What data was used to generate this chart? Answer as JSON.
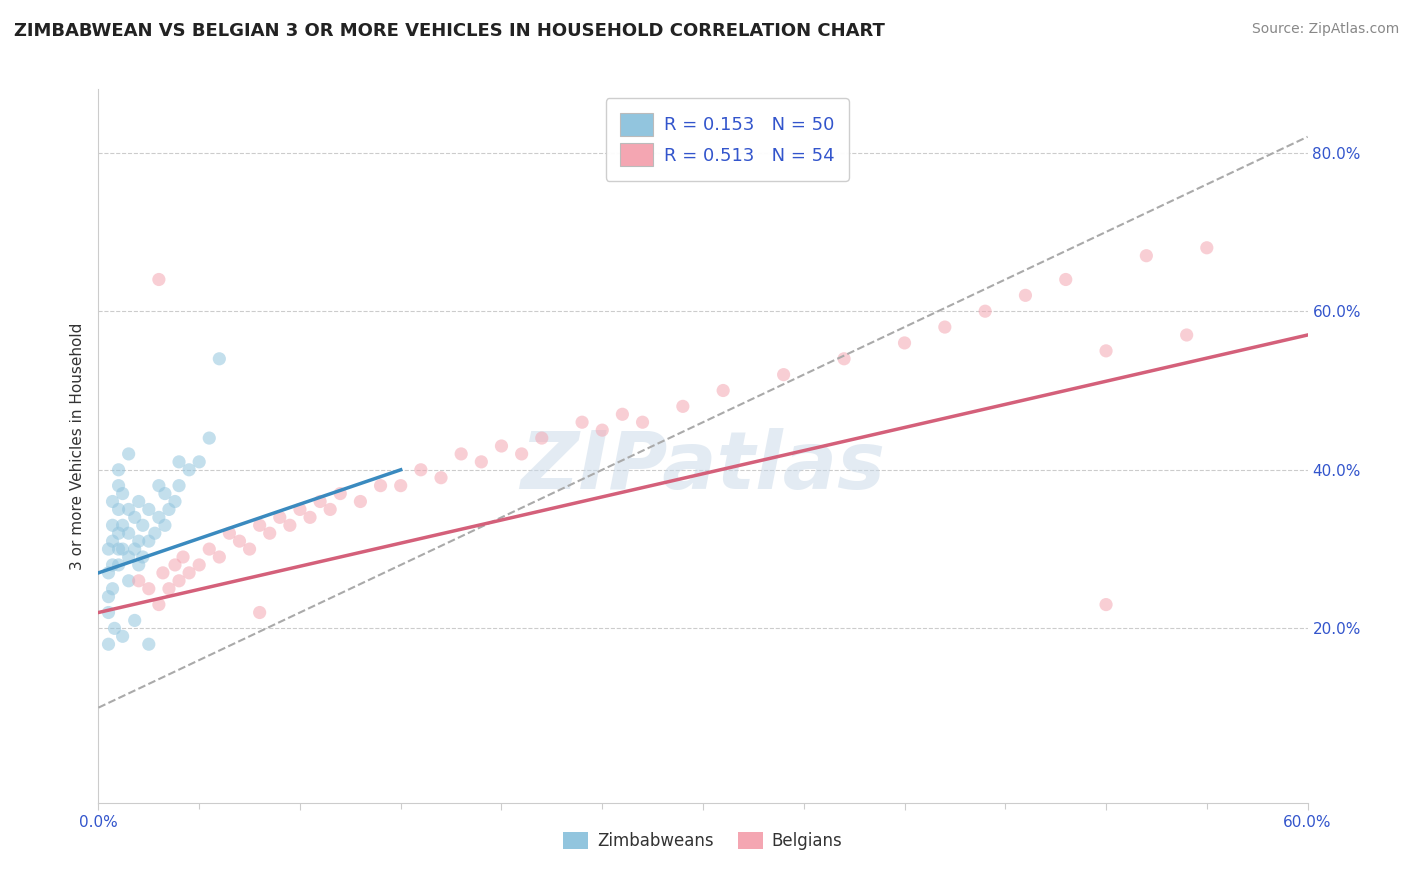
{
  "title": "ZIMBABWEAN VS BELGIAN 3 OR MORE VEHICLES IN HOUSEHOLD CORRELATION CHART",
  "source_text": "Source: ZipAtlas.com",
  "ylabel": "3 or more Vehicles in Household",
  "xlim": [
    0.0,
    0.6
  ],
  "ylim": [
    -0.02,
    0.88
  ],
  "xtick_positions": [
    0.0,
    0.1,
    0.2,
    0.3,
    0.4,
    0.5,
    0.6
  ],
  "xticklabels_sparse": [
    "0.0%",
    "",
    "",
    "",
    "",
    "",
    "60.0%"
  ],
  "yticks_right": [
    0.2,
    0.4,
    0.6,
    0.8
  ],
  "yticklabels_right": [
    "20.0%",
    "40.0%",
    "60.0%",
    "80.0%"
  ],
  "zimbabwean_R": 0.153,
  "zimbabwean_N": 50,
  "belgian_R": 0.513,
  "belgian_N": 54,
  "zimbabwean_color": "#92c5de",
  "belgian_color": "#f4a6b2",
  "zimbabwean_trend_color": "#3a8abf",
  "belgian_trend_color": "#d4607a",
  "dashed_trend_color": "#aaaaaa",
  "background_color": "#ffffff",
  "grid_color": "#cccccc",
  "legend_text_color": "#3355cc",
  "watermark": "ZIPatlas",
  "watermark_color": "#c8d8e8",
  "dot_size": 90,
  "dot_alpha": 0.55,
  "zim_x": [
    0.005,
    0.005,
    0.005,
    0.005,
    0.007,
    0.007,
    0.007,
    0.007,
    0.007,
    0.01,
    0.01,
    0.01,
    0.01,
    0.01,
    0.01,
    0.012,
    0.012,
    0.012,
    0.015,
    0.015,
    0.015,
    0.015,
    0.015,
    0.018,
    0.018,
    0.02,
    0.02,
    0.02,
    0.022,
    0.022,
    0.025,
    0.025,
    0.028,
    0.03,
    0.03,
    0.033,
    0.033,
    0.035,
    0.038,
    0.04,
    0.04,
    0.045,
    0.05,
    0.055,
    0.06,
    0.005,
    0.008,
    0.012,
    0.018,
    0.025
  ],
  "zim_y": [
    0.27,
    0.24,
    0.22,
    0.3,
    0.25,
    0.28,
    0.31,
    0.33,
    0.36,
    0.28,
    0.3,
    0.32,
    0.35,
    0.38,
    0.4,
    0.3,
    0.33,
    0.37,
    0.26,
    0.29,
    0.32,
    0.35,
    0.42,
    0.3,
    0.34,
    0.28,
    0.31,
    0.36,
    0.29,
    0.33,
    0.31,
    0.35,
    0.32,
    0.34,
    0.38,
    0.33,
    0.37,
    0.35,
    0.36,
    0.38,
    0.41,
    0.4,
    0.41,
    0.44,
    0.54,
    0.18,
    0.2,
    0.19,
    0.21,
    0.18
  ],
  "bel_x": [
    0.02,
    0.025,
    0.03,
    0.032,
    0.035,
    0.038,
    0.04,
    0.042,
    0.045,
    0.05,
    0.055,
    0.06,
    0.065,
    0.07,
    0.075,
    0.08,
    0.085,
    0.09,
    0.095,
    0.1,
    0.105,
    0.11,
    0.115,
    0.12,
    0.13,
    0.14,
    0.15,
    0.16,
    0.17,
    0.18,
    0.19,
    0.2,
    0.21,
    0.22,
    0.24,
    0.25,
    0.26,
    0.27,
    0.29,
    0.31,
    0.34,
    0.37,
    0.4,
    0.42,
    0.44,
    0.46,
    0.48,
    0.5,
    0.52,
    0.54,
    0.55,
    0.03,
    0.08,
    0.5
  ],
  "bel_y": [
    0.26,
    0.25,
    0.23,
    0.27,
    0.25,
    0.28,
    0.26,
    0.29,
    0.27,
    0.28,
    0.3,
    0.29,
    0.32,
    0.31,
    0.3,
    0.33,
    0.32,
    0.34,
    0.33,
    0.35,
    0.34,
    0.36,
    0.35,
    0.37,
    0.36,
    0.38,
    0.38,
    0.4,
    0.39,
    0.42,
    0.41,
    0.43,
    0.42,
    0.44,
    0.46,
    0.45,
    0.47,
    0.46,
    0.48,
    0.5,
    0.52,
    0.54,
    0.56,
    0.58,
    0.6,
    0.62,
    0.64,
    0.55,
    0.67,
    0.57,
    0.68,
    0.64,
    0.22,
    0.23
  ],
  "zim_trendline_x": [
    0.0,
    0.15
  ],
  "zim_trendline_y": [
    0.27,
    0.4
  ],
  "bel_trendline_x": [
    0.0,
    0.6
  ],
  "bel_trendline_y": [
    0.22,
    0.57
  ],
  "dash_trendline_x": [
    0.0,
    0.6
  ],
  "dash_trendline_y": [
    0.1,
    0.82
  ]
}
